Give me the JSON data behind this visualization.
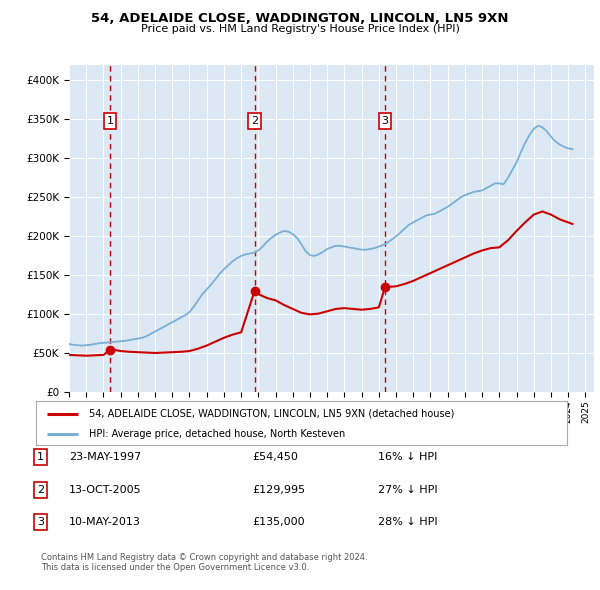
{
  "title_line1": "54, ADELAIDE CLOSE, WADDINGTON, LINCOLN, LN5 9XN",
  "title_line2": "Price paid vs. HM Land Registry's House Price Index (HPI)",
  "plot_bg_color": "#dce9f5",
  "hpi_color": "#7bafd4",
  "price_color": "#cc0000",
  "dashed_color": "#cc0000",
  "ylim": [
    0,
    420000
  ],
  "yticks": [
    0,
    50000,
    100000,
    150000,
    200000,
    250000,
    300000,
    350000,
    400000
  ],
  "xlim_start": 1995.0,
  "xlim_end": 2025.5,
  "sale_dates": [
    1997.388,
    2005.78,
    2013.36
  ],
  "sale_prices": [
    54450,
    129995,
    135000
  ],
  "sale_labels": [
    "1",
    "2",
    "3"
  ],
  "legend_line1": "54, ADELAIDE CLOSE, WADDINGTON, LINCOLN, LN5 9XN (detached house)",
  "legend_line2": "HPI: Average price, detached house, North Kesteven",
  "table_data": [
    [
      "1",
      "23-MAY-1997",
      "£54,450",
      "16% ↓ HPI"
    ],
    [
      "2",
      "13-OCT-2005",
      "£129,995",
      "27% ↓ HPI"
    ],
    [
      "3",
      "10-MAY-2013",
      "£135,000",
      "28% ↓ HPI"
    ]
  ],
  "footer_line1": "Contains HM Land Registry data © Crown copyright and database right 2024.",
  "footer_line2": "This data is licensed under the Open Government Licence v3.0.",
  "hpi_data_x": [
    1995.0,
    1995.25,
    1995.5,
    1995.75,
    1996.0,
    1996.25,
    1996.5,
    1996.75,
    1997.0,
    1997.25,
    1997.5,
    1997.75,
    1998.0,
    1998.25,
    1998.5,
    1998.75,
    1999.0,
    1999.25,
    1999.5,
    1999.75,
    2000.0,
    2000.25,
    2000.5,
    2000.75,
    2001.0,
    2001.25,
    2001.5,
    2001.75,
    2002.0,
    2002.25,
    2002.5,
    2002.75,
    2003.0,
    2003.25,
    2003.5,
    2003.75,
    2004.0,
    2004.25,
    2004.5,
    2004.75,
    2005.0,
    2005.25,
    2005.5,
    2005.75,
    2006.0,
    2006.25,
    2006.5,
    2006.75,
    2007.0,
    2007.25,
    2007.5,
    2007.75,
    2008.0,
    2008.25,
    2008.5,
    2008.75,
    2009.0,
    2009.25,
    2009.5,
    2009.75,
    2010.0,
    2010.25,
    2010.5,
    2010.75,
    2011.0,
    2011.25,
    2011.5,
    2011.75,
    2012.0,
    2012.25,
    2012.5,
    2012.75,
    2013.0,
    2013.25,
    2013.5,
    2013.75,
    2014.0,
    2014.25,
    2014.5,
    2014.75,
    2015.0,
    2015.25,
    2015.5,
    2015.75,
    2016.0,
    2016.25,
    2016.5,
    2016.75,
    2017.0,
    2017.25,
    2017.5,
    2017.75,
    2018.0,
    2018.25,
    2018.5,
    2018.75,
    2019.0,
    2019.25,
    2019.5,
    2019.75,
    2020.0,
    2020.25,
    2020.5,
    2020.75,
    2021.0,
    2021.25,
    2021.5,
    2021.75,
    2022.0,
    2022.25,
    2022.5,
    2022.75,
    2023.0,
    2023.25,
    2023.5,
    2023.75,
    2024.0,
    2024.25
  ],
  "hpi_data_y": [
    62000,
    61000,
    60500,
    60000,
    60500,
    61000,
    62000,
    63000,
    63500,
    64000,
    64500,
    65000,
    65500,
    66000,
    67000,
    68000,
    69000,
    70000,
    72000,
    75000,
    78000,
    81000,
    84000,
    87000,
    90000,
    93000,
    96000,
    99000,
    103000,
    110000,
    118000,
    126000,
    132000,
    138000,
    145000,
    152000,
    158000,
    163000,
    168000,
    172000,
    175000,
    177000,
    178000,
    179000,
    182000,
    187000,
    193000,
    198000,
    202000,
    205000,
    207000,
    206000,
    203000,
    198000,
    190000,
    181000,
    176000,
    175000,
    177000,
    180000,
    184000,
    186000,
    188000,
    188000,
    187000,
    186000,
    185000,
    184000,
    183000,
    183000,
    184000,
    185000,
    187000,
    189000,
    192000,
    196000,
    200000,
    205000,
    210000,
    215000,
    218000,
    221000,
    224000,
    227000,
    228000,
    229000,
    232000,
    235000,
    238000,
    242000,
    246000,
    250000,
    253000,
    255000,
    257000,
    258000,
    259000,
    262000,
    265000,
    268000,
    268000,
    267000,
    275000,
    285000,
    295000,
    308000,
    320000,
    330000,
    338000,
    342000,
    340000,
    335000,
    328000,
    322000,
    318000,
    315000,
    313000,
    312000
  ],
  "price_data_x": [
    1995.0,
    1995.5,
    1996.0,
    1996.5,
    1997.0,
    1997.388,
    1997.75,
    1998.0,
    1998.5,
    1999.0,
    1999.5,
    2000.0,
    2000.5,
    2001.0,
    2001.5,
    2002.0,
    2002.5,
    2003.0,
    2003.5,
    2004.0,
    2004.5,
    2005.0,
    2005.78,
    2006.0,
    2006.5,
    2007.0,
    2007.5,
    2008.0,
    2008.5,
    2009.0,
    2009.5,
    2010.0,
    2010.5,
    2011.0,
    2011.5,
    2012.0,
    2012.5,
    2013.0,
    2013.36,
    2014.0,
    2014.5,
    2015.0,
    2015.5,
    2016.0,
    2016.5,
    2017.0,
    2017.5,
    2018.0,
    2018.5,
    2019.0,
    2019.5,
    2020.0,
    2020.5,
    2021.0,
    2021.5,
    2022.0,
    2022.5,
    2023.0,
    2023.5,
    2024.0,
    2024.25
  ],
  "price_data_y": [
    48000,
    47500,
    47000,
    47500,
    48000,
    54450,
    54000,
    53000,
    52000,
    51500,
    51000,
    50500,
    51000,
    51500,
    52000,
    53000,
    56000,
    60000,
    65000,
    70000,
    74000,
    77000,
    129995,
    126000,
    121000,
    118000,
    112000,
    107000,
    102000,
    100000,
    101000,
    104000,
    107000,
    108000,
    107000,
    106000,
    107000,
    109000,
    135000,
    136000,
    139000,
    143000,
    148000,
    153000,
    158000,
    163000,
    168000,
    173000,
    178000,
    182000,
    185000,
    186000,
    195000,
    207000,
    218000,
    228000,
    232000,
    228000,
    222000,
    218000,
    216000
  ]
}
